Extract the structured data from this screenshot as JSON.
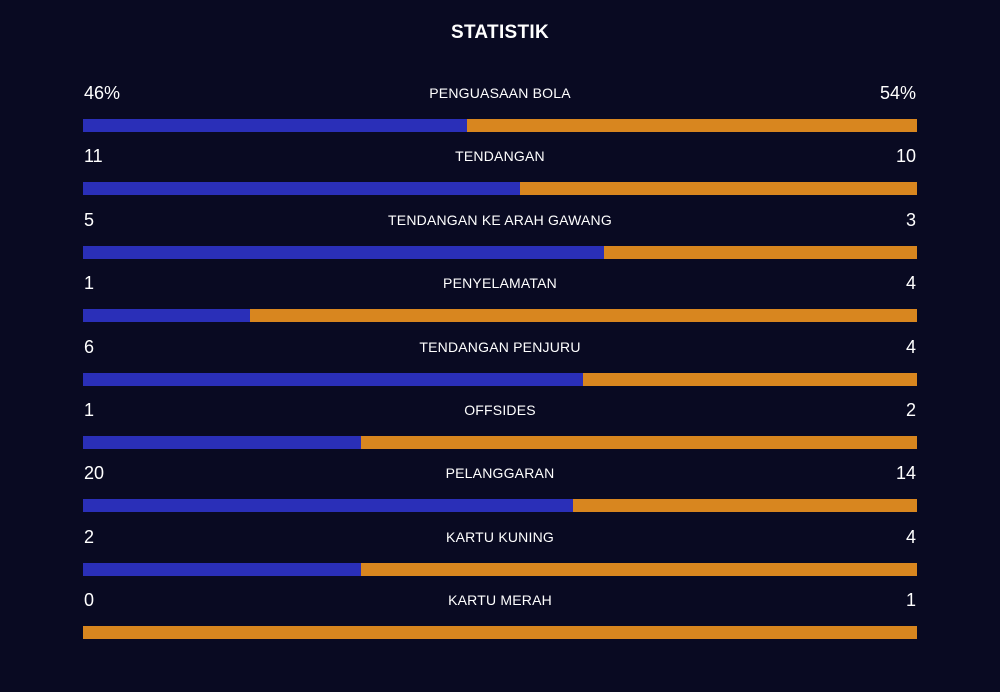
{
  "title": "STATISTIK",
  "colors": {
    "background": "#090a22",
    "home": "#2a2fb8",
    "away": "#d8861f",
    "text": "#ffffff"
  },
  "stats": [
    {
      "label": "PENGUASAAN BOLA",
      "home": "46%",
      "away": "54%",
      "home_share": 0.46
    },
    {
      "label": "TENDANGAN",
      "home": "11",
      "away": "10",
      "home_share": 0.524
    },
    {
      "label": "TENDANGAN KE ARAH GAWANG",
      "home": "5",
      "away": "3",
      "home_share": 0.625
    },
    {
      "label": "PENYELAMATAN",
      "home": "1",
      "away": "4",
      "home_share": 0.2
    },
    {
      "label": "TENDANGAN PENJURU",
      "home": "6",
      "away": "4",
      "home_share": 0.6
    },
    {
      "label": "OFFSIDES",
      "home": "1",
      "away": "2",
      "home_share": 0.333
    },
    {
      "label": "PELANGGARAN",
      "home": "20",
      "away": "14",
      "home_share": 0.588
    },
    {
      "label": "KARTU KUNING",
      "home": "2",
      "away": "4",
      "home_share": 0.333
    },
    {
      "label": "KARTU MERAH",
      "home": "0",
      "away": "1",
      "home_share": 0
    }
  ]
}
